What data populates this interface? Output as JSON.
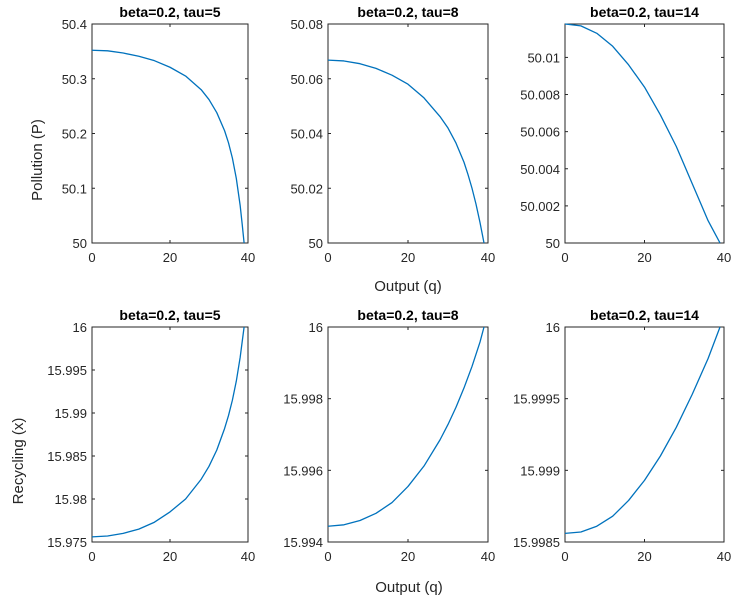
{
  "figure": {
    "xlabel_bottom_middle": "Output (q)",
    "ylabel_top_row": "Pollution (P)",
    "ylabel_bottom_row": "Recycling (x)"
  },
  "chart_data": [
    {
      "type": "line",
      "title": "beta=0.2, tau=5",
      "xlabel": "",
      "ylabel": "Pollution (P)",
      "xlim": [
        0,
        40
      ],
      "ylim": [
        50,
        50.4
      ],
      "xticks": [
        0,
        20,
        40
      ],
      "xtick_labels": [
        "0",
        "20",
        "40"
      ],
      "yticks": [
        50,
        50.1,
        50.2,
        50.3,
        50.4
      ],
      "ytick_labels": [
        "50",
        "50.1",
        "50.2",
        "50.3",
        "50.4"
      ],
      "grid": false,
      "line_color": "#0072BD",
      "series": [
        {
          "x": [
            0,
            4,
            8,
            12,
            16,
            20,
            24,
            28,
            30,
            32,
            34,
            35,
            36,
            37,
            38,
            38.5,
            39
          ],
          "y": [
            50.352,
            50.351,
            50.347,
            50.341,
            50.333,
            50.321,
            50.305,
            50.28,
            50.262,
            50.238,
            50.205,
            50.183,
            50.155,
            50.118,
            50.068,
            50.035,
            50.0
          ]
        }
      ]
    },
    {
      "type": "line",
      "title": "beta=0.2, tau=8",
      "xlabel": "",
      "ylabel": "",
      "xlim": [
        0,
        40
      ],
      "ylim": [
        50,
        50.08
      ],
      "xticks": [
        0,
        20,
        40
      ],
      "xtick_labels": [
        "0",
        "20",
        "40"
      ],
      "yticks": [
        50,
        50.02,
        50.04,
        50.06,
        50.08
      ],
      "ytick_labels": [
        "50",
        "50.02",
        "50.04",
        "50.06",
        "50.08"
      ],
      "grid": false,
      "line_color": "#0072BD",
      "series": [
        {
          "x": [
            0,
            4,
            8,
            12,
            16,
            20,
            24,
            28,
            30,
            32,
            34,
            35,
            36,
            37,
            38,
            39
          ],
          "y": [
            50.0668,
            50.0665,
            50.0655,
            50.0638,
            50.0613,
            50.058,
            50.053,
            50.0462,
            50.042,
            50.0365,
            50.0295,
            50.025,
            50.02,
            50.0142,
            50.0075,
            50.0
          ]
        }
      ]
    },
    {
      "type": "line",
      "title": "beta=0.2, tau=14",
      "xlabel": "",
      "ylabel": "",
      "xlim": [
        0,
        40
      ],
      "ylim": [
        50,
        50.0118
      ],
      "xticks": [
        0,
        20,
        40
      ],
      "xtick_labels": [
        "0",
        "20",
        "40"
      ],
      "yticks": [
        50,
        50.002,
        50.004,
        50.006,
        50.008,
        50.01
      ],
      "ytick_labels": [
        "50",
        "50.002",
        "50.004",
        "50.006",
        "50.008",
        "50.01"
      ],
      "grid": false,
      "line_color": "#0072BD",
      "series": [
        {
          "x": [
            0,
            4,
            8,
            12,
            16,
            20,
            24,
            28,
            30,
            32,
            34,
            36,
            38,
            39
          ],
          "y": [
            50.0118,
            50.0117,
            50.0113,
            50.0106,
            50.0096,
            50.0084,
            50.0069,
            50.0052,
            50.0042,
            50.0032,
            50.0022,
            50.0012,
            50.0004,
            50.0
          ]
        }
      ]
    },
    {
      "type": "line",
      "title": "beta=0.2, tau=5",
      "xlabel": "",
      "ylabel": "Recycling (x)",
      "xlim": [
        0,
        40
      ],
      "ylim": [
        15.975,
        16
      ],
      "xticks": [
        0,
        20,
        40
      ],
      "xtick_labels": [
        "0",
        "20",
        "40"
      ],
      "yticks": [
        15.975,
        15.98,
        15.985,
        15.99,
        15.995,
        16
      ],
      "ytick_labels": [
        "15.975",
        "15.98",
        "15.985",
        "15.99",
        "15.995",
        "16"
      ],
      "grid": false,
      "line_color": "#0072BD",
      "series": [
        {
          "x": [
            0,
            4,
            8,
            12,
            16,
            20,
            24,
            28,
            30,
            32,
            34,
            35,
            36,
            37,
            38,
            39
          ],
          "y": [
            15.9756,
            15.9757,
            15.976,
            15.9765,
            15.9773,
            15.9785,
            15.98,
            15.9823,
            15.9838,
            15.9857,
            15.9882,
            15.9897,
            15.9915,
            15.9937,
            15.9965,
            16.0
          ]
        }
      ]
    },
    {
      "type": "line",
      "title": "beta=0.2, tau=8",
      "xlabel": "Output (q)",
      "ylabel": "",
      "xlim": [
        0,
        40
      ],
      "ylim": [
        15.994,
        16
      ],
      "xticks": [
        0,
        20,
        40
      ],
      "xtick_labels": [
        "0",
        "20",
        "40"
      ],
      "yticks": [
        15.994,
        15.996,
        15.998,
        16
      ],
      "ytick_labels": [
        "15.994",
        "15.996",
        "15.998",
        "16"
      ],
      "grid": false,
      "line_color": "#0072BD",
      "series": [
        {
          "x": [
            0,
            4,
            8,
            12,
            16,
            20,
            24,
            28,
            30,
            32,
            34,
            36,
            38,
            39
          ],
          "y": [
            15.99444,
            15.99448,
            15.9946,
            15.9948,
            15.9951,
            15.99555,
            15.99612,
            15.99685,
            15.99728,
            15.99776,
            15.9983,
            15.9989,
            15.99958,
            16.0
          ]
        }
      ]
    },
    {
      "type": "line",
      "title": "beta=0.2, tau=14",
      "xlabel": "",
      "ylabel": "",
      "xlim": [
        0,
        40
      ],
      "ylim": [
        15.9985,
        16
      ],
      "xticks": [
        0,
        20,
        40
      ],
      "xtick_labels": [
        "0",
        "20",
        "40"
      ],
      "yticks": [
        15.9985,
        15.999,
        15.9995,
        16
      ],
      "ytick_labels": [
        "15.9985",
        "15.999",
        "15.9995",
        "16"
      ],
      "grid": false,
      "line_color": "#0072BD",
      "series": [
        {
          "x": [
            0,
            4,
            8,
            12,
            16,
            20,
            24,
            28,
            32,
            36,
            39
          ],
          "y": [
            15.99856,
            15.99857,
            15.99861,
            15.99868,
            15.99879,
            15.99893,
            15.9991,
            15.9993,
            15.99953,
            15.99978,
            16.0
          ]
        }
      ]
    }
  ]
}
